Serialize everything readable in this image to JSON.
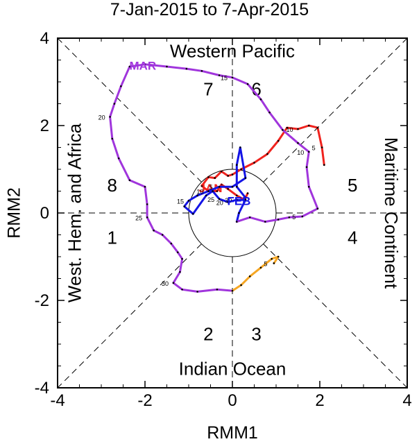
{
  "chart_data": {
    "type": "line",
    "title": "7-Jan-2015 to 7-Apr-2015",
    "xlabel": "RMM1",
    "ylabel": "RMM2",
    "xlim": [
      -4,
      4
    ],
    "ylim": [
      -4,
      4
    ],
    "xticks": [
      "-4",
      "-2",
      "0",
      "2",
      "4"
    ],
    "yticks": [
      "-4",
      "-2",
      "0",
      "2",
      "4"
    ],
    "phase_labels": [
      "1",
      "2",
      "3",
      "4",
      "5",
      "6",
      "7",
      "8"
    ],
    "region_labels": {
      "top": "Western Pacific",
      "bottom": "Indian Ocean",
      "left": "West. Hem. and Africa",
      "right": "Maritime Continent"
    },
    "series": [
      {
        "name": "JAN",
        "color": "#f0231e",
        "points": [
          [
            2.1,
            1.1
          ],
          [
            2.05,
            1.5
          ],
          [
            1.95,
            1.95
          ],
          [
            1.75,
            2.0
          ],
          [
            1.5,
            1.92
          ],
          [
            1.25,
            1.95
          ],
          [
            1.05,
            1.65
          ],
          [
            0.8,
            1.35
          ],
          [
            0.5,
            1.15
          ],
          [
            0.2,
            1.0
          ],
          [
            0.0,
            0.88
          ],
          [
            -0.1,
            0.85
          ],
          [
            -0.25,
            0.95
          ],
          [
            -0.4,
            0.8
          ],
          [
            -0.55,
            0.82
          ],
          [
            -0.7,
            0.62
          ],
          [
            -0.55,
            0.5
          ],
          [
            -0.35,
            0.5
          ],
          [
            -0.25,
            0.65
          ],
          [
            -0.1,
            0.55
          ],
          [
            0.1,
            0.4
          ],
          [
            0.28,
            0.3
          ],
          [
            0.35,
            0.45
          ],
          [
            0.3,
            0.35
          ]
        ],
        "day_labels": [
          {
            "day": "5",
            "at": 1
          },
          {
            "day": "10",
            "at": 4
          }
        ]
      },
      {
        "name": "FEB",
        "color": "#1414e6",
        "points": [
          [
            0.3,
            0.35
          ],
          [
            0.1,
            0.6
          ],
          [
            0.1,
            1.1
          ],
          [
            0.18,
            1.5
          ],
          [
            0.3,
            0.8
          ],
          [
            0.0,
            0.6
          ],
          [
            -0.3,
            0.6
          ],
          [
            -0.55,
            0.5
          ],
          [
            -0.8,
            0.4
          ],
          [
            -1.0,
            0.28
          ],
          [
            -1.1,
            0.15
          ],
          [
            -0.9,
            -0.02
          ],
          [
            -0.6,
            0.4
          ],
          [
            -0.45,
            0.5
          ],
          [
            -0.3,
            0.32
          ],
          [
            -0.1,
            0.25
          ],
          [
            0.1,
            0.3
          ],
          [
            0.3,
            0.3
          ],
          [
            0.15,
            0.0
          ],
          [
            0.1,
            -0.2
          ]
        ],
        "day_labels": [
          {
            "day": "5",
            "at": 6
          },
          {
            "day": "10",
            "at": 7
          },
          {
            "day": "15",
            "at": 9
          },
          {
            "day": "20",
            "at": 15
          },
          {
            "day": "25",
            "at": 14
          },
          {
            "day": "30",
            "at": 16
          }
        ]
      },
      {
        "name": "MAR",
        "color": "#a035dc",
        "points": [
          [
            0.1,
            -0.2
          ],
          [
            0.4,
            -0.1
          ],
          [
            0.75,
            -0.2
          ],
          [
            1.05,
            -0.15
          ],
          [
            1.3,
            -0.1
          ],
          [
            1.6,
            -0.08
          ],
          [
            1.95,
            0.1
          ],
          [
            1.75,
            0.6
          ],
          [
            1.7,
            1.05
          ],
          [
            1.75,
            1.4
          ],
          [
            1.5,
            1.6
          ],
          [
            1.15,
            1.9
          ],
          [
            0.85,
            2.3
          ],
          [
            0.65,
            2.6
          ],
          [
            0.35,
            2.95
          ],
          [
            0.0,
            3.1
          ],
          [
            -0.3,
            3.15
          ],
          [
            -0.7,
            3.25
          ],
          [
            -1.05,
            3.3
          ],
          [
            -1.5,
            3.35
          ],
          [
            -2.0,
            3.4
          ],
          [
            -2.35,
            3.35
          ],
          [
            -2.55,
            2.9
          ],
          [
            -2.7,
            2.5
          ],
          [
            -2.8,
            2.2
          ],
          [
            -2.75,
            1.7
          ],
          [
            -2.6,
            1.25
          ],
          [
            -2.35,
            0.75
          ],
          [
            -2.0,
            0.6
          ],
          [
            -1.95,
            0.2
          ],
          [
            -1.95,
            -0.1
          ],
          [
            -1.8,
            -0.4
          ],
          [
            -1.6,
            -0.5
          ],
          [
            -1.4,
            -0.7
          ],
          [
            -1.25,
            -0.9
          ],
          [
            -1.15,
            -1.05
          ],
          [
            -1.2,
            -1.35
          ],
          [
            -1.35,
            -1.6
          ],
          [
            -1.15,
            -1.75
          ],
          [
            -0.8,
            -1.8
          ],
          [
            -0.35,
            -1.75
          ],
          [
            0.0,
            -1.78
          ]
        ],
        "day_labels": [
          {
            "day": "5",
            "at": 5
          },
          {
            "day": "10",
            "at": 9
          },
          {
            "day": "15",
            "at": 15
          },
          {
            "day": "20",
            "at": 24
          },
          {
            "day": "25",
            "at": 30
          },
          {
            "day": "30",
            "at": 37
          }
        ]
      },
      {
        "name": "APR",
        "color": "#f5a623",
        "points": [
          [
            0.0,
            -1.78
          ],
          [
            0.2,
            -1.65
          ],
          [
            0.4,
            -1.45
          ],
          [
            0.65,
            -1.25
          ],
          [
            0.9,
            -1.05
          ],
          [
            1.05,
            -1.0
          ],
          [
            0.95,
            -1.15
          ]
        ],
        "day_labels": [
          {
            "day": "5",
            "at": 6
          }
        ]
      }
    ]
  }
}
